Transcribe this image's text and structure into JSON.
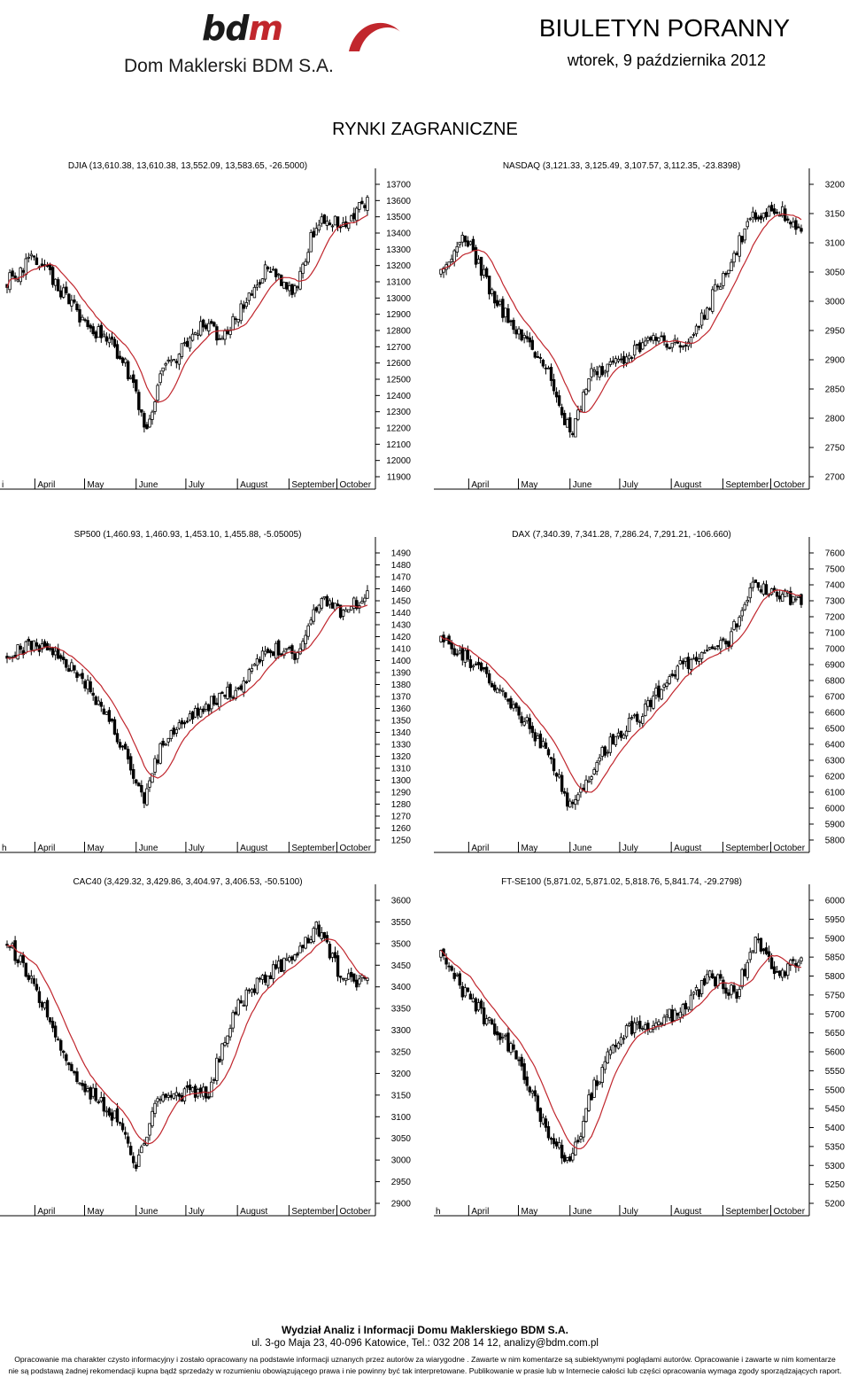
{
  "header": {
    "logo_mark_b": "bd",
    "logo_mark_m": "m",
    "company": "Dom Maklerski BDM S.A.",
    "bulletin": "BIULETYN PORANNY",
    "date": "wtorek, 9 października 2012"
  },
  "section_title": "RYNKI ZAGRANICZNE",
  "footer": {
    "line1": "Wydział Analiz i Informacji Domu Maklerskiego BDM S.A.",
    "line2": "ul. 3-go Maja 23, 40-096 Katowice, Tel.: 032 208 14 12, analizy@bdm.com.pl",
    "disclaimer1": "Opracowanie ma charakter czysto informacyjny i zostało opracowany na podstawie informacji uznanych przez autorów za wiarygodne . Zawarte w nim komentarze są subiektywnymi poglądami autorów. Opracowanie i zawarte w nim komentarze",
    "disclaimer2": "nie są podstawą żadnej rekomendacji kupna bądź sprzedaży w rozumieniu obowiązującego prawa i nie powinny być tak interpretowane. Publikowanie w prasie lub w Internecie całości lub części opracowania wymaga zgody sporządzających raport."
  },
  "colors": {
    "candle": "#000000",
    "ma": "#c0262d",
    "axis": "#000000"
  },
  "chart_data": [
    {
      "id": "djia",
      "type": "candlestick",
      "title": "DJIA (13,610.38, 13,610.38, 13,552.09, 13,583.65, -26.5000)",
      "ylim": [
        11900,
        13700
      ],
      "yticks": [
        11900,
        12000,
        12100,
        12200,
        12300,
        12400,
        12500,
        12600,
        12700,
        12800,
        12900,
        13000,
        13100,
        13200,
        13300,
        13400,
        13500,
        13600,
        13700
      ],
      "months": [
        "April",
        "May",
        "June",
        "July",
        "August",
        "September",
        "October"
      ],
      "lead_label": "i",
      "keypoints": [
        [
          0,
          13100
        ],
        [
          0.08,
          13250
        ],
        [
          0.19,
          12920
        ],
        [
          0.32,
          12640
        ],
        [
          0.39,
          12180
        ],
        [
          0.43,
          12530
        ],
        [
          0.49,
          12700
        ],
        [
          0.54,
          12850
        ],
        [
          0.6,
          12750
        ],
        [
          0.72,
          13180
        ],
        [
          0.8,
          13050
        ],
        [
          0.86,
          13480
        ],
        [
          0.93,
          13450
        ],
        [
          1,
          13590
        ]
      ]
    },
    {
      "id": "nasdaq",
      "type": "candlestick",
      "title": "NASDAQ (3,121.33, 3,125.49, 3,107.57, 3,112.35, -23.8398)",
      "ylim": [
        2700,
        3200
      ],
      "yticks": [
        2700,
        2750,
        2800,
        2850,
        2900,
        2950,
        3000,
        3050,
        3100,
        3150,
        3200
      ],
      "months": [
        "April",
        "May",
        "June",
        "July",
        "August",
        "September",
        "October"
      ],
      "lead_label": "",
      "keypoints": [
        [
          0,
          3050
        ],
        [
          0.07,
          3110
        ],
        [
          0.15,
          3000
        ],
        [
          0.3,
          2880
        ],
        [
          0.36,
          2770
        ],
        [
          0.42,
          2880
        ],
        [
          0.5,
          2900
        ],
        [
          0.58,
          2940
        ],
        [
          0.68,
          2920
        ],
        [
          0.78,
          3040
        ],
        [
          0.86,
          3140
        ],
        [
          0.93,
          3160
        ],
        [
          1,
          3120
        ]
      ]
    },
    {
      "id": "sp500",
      "type": "candlestick",
      "title": "SP500 (1,460.93, 1,460.93, 1,453.10, 1,455.88, -5.05005)",
      "ylim": [
        1250,
        1490
      ],
      "yticks": [
        1250,
        1260,
        1270,
        1280,
        1290,
        1300,
        1310,
        1320,
        1330,
        1340,
        1350,
        1360,
        1370,
        1380,
        1390,
        1400,
        1410,
        1420,
        1430,
        1440,
        1450,
        1460,
        1470,
        1480,
        1490
      ],
      "months": [
        "April",
        "May",
        "June",
        "July",
        "August",
        "September",
        "October"
      ],
      "lead_label": "h",
      "keypoints": [
        [
          0,
          1405
        ],
        [
          0.08,
          1415
        ],
        [
          0.2,
          1390
        ],
        [
          0.32,
          1330
        ],
        [
          0.38,
          1285
        ],
        [
          0.43,
          1330
        ],
        [
          0.5,
          1350
        ],
        [
          0.57,
          1365
        ],
        [
          0.63,
          1375
        ],
        [
          0.73,
          1410
        ],
        [
          0.8,
          1405
        ],
        [
          0.87,
          1450
        ],
        [
          0.93,
          1440
        ],
        [
          1,
          1456
        ]
      ]
    },
    {
      "id": "dax",
      "type": "candlestick",
      "title": "DAX (7,340.39, 7,341.28, 7,286.24, 7,291.21, -106.660)",
      "ylim": [
        5800,
        7600
      ],
      "yticks": [
        5800,
        5900,
        6000,
        6100,
        6200,
        6300,
        6400,
        6500,
        6600,
        6700,
        6800,
        6900,
        7000,
        7100,
        7200,
        7300,
        7400,
        7500,
        7600
      ],
      "months": [
        "April",
        "May",
        "June",
        "July",
        "August",
        "September",
        "October"
      ],
      "lead_label": "",
      "keypoints": [
        [
          0,
          7050
        ],
        [
          0.07,
          6950
        ],
        [
          0.18,
          6700
        ],
        [
          0.3,
          6350
        ],
        [
          0.36,
          6000
        ],
        [
          0.42,
          6250
        ],
        [
          0.48,
          6450
        ],
        [
          0.56,
          6600
        ],
        [
          0.64,
          6850
        ],
        [
          0.72,
          6950
        ],
        [
          0.8,
          7050
        ],
        [
          0.86,
          7400
        ],
        [
          0.93,
          7350
        ],
        [
          1,
          7290
        ]
      ]
    },
    {
      "id": "cac40",
      "type": "candlestick",
      "title": "CAC40 (3,429.32, 3,429.86, 3,404.97, 3,406.53, -50.5100)",
      "ylim": [
        2900,
        3600
      ],
      "yticks": [
        2900,
        2950,
        3000,
        3050,
        3100,
        3150,
        3200,
        3250,
        3300,
        3350,
        3400,
        3450,
        3500,
        3550,
        3600
      ],
      "months": [
        "April",
        "May",
        "June",
        "July",
        "August",
        "September",
        "October"
      ],
      "lead_label": "",
      "keypoints": [
        [
          0,
          3500
        ],
        [
          0.07,
          3420
        ],
        [
          0.18,
          3200
        ],
        [
          0.3,
          3100
        ],
        [
          0.36,
          2980
        ],
        [
          0.42,
          3150
        ],
        [
          0.48,
          3150
        ],
        [
          0.56,
          3160
        ],
        [
          0.63,
          3350
        ],
        [
          0.72,
          3430
        ],
        [
          0.8,
          3470
        ],
        [
          0.86,
          3540
        ],
        [
          0.93,
          3420
        ],
        [
          1,
          3406
        ]
      ]
    },
    {
      "id": "ftse100",
      "type": "candlestick",
      "title": "FT-SE100 (5,871.02, 5,871.02, 5,818.76, 5,841.74, -29.2798)",
      "ylim": [
        5200,
        6000
      ],
      "yticks": [
        5200,
        5250,
        5300,
        5350,
        5400,
        5450,
        5500,
        5550,
        5600,
        5650,
        5700,
        5750,
        5800,
        5850,
        5900,
        5950,
        6000
      ],
      "months": [
        "April",
        "May",
        "June",
        "July",
        "August",
        "September",
        "October"
      ],
      "lead_label": "h",
      "keypoints": [
        [
          0,
          5850
        ],
        [
          0.07,
          5750
        ],
        [
          0.2,
          5600
        ],
        [
          0.3,
          5380
        ],
        [
          0.36,
          5300
        ],
        [
          0.42,
          5500
        ],
        [
          0.5,
          5650
        ],
        [
          0.58,
          5680
        ],
        [
          0.66,
          5700
        ],
        [
          0.75,
          5800
        ],
        [
          0.82,
          5750
        ],
        [
          0.87,
          5900
        ],
        [
          0.93,
          5800
        ],
        [
          1,
          5842
        ]
      ]
    }
  ]
}
